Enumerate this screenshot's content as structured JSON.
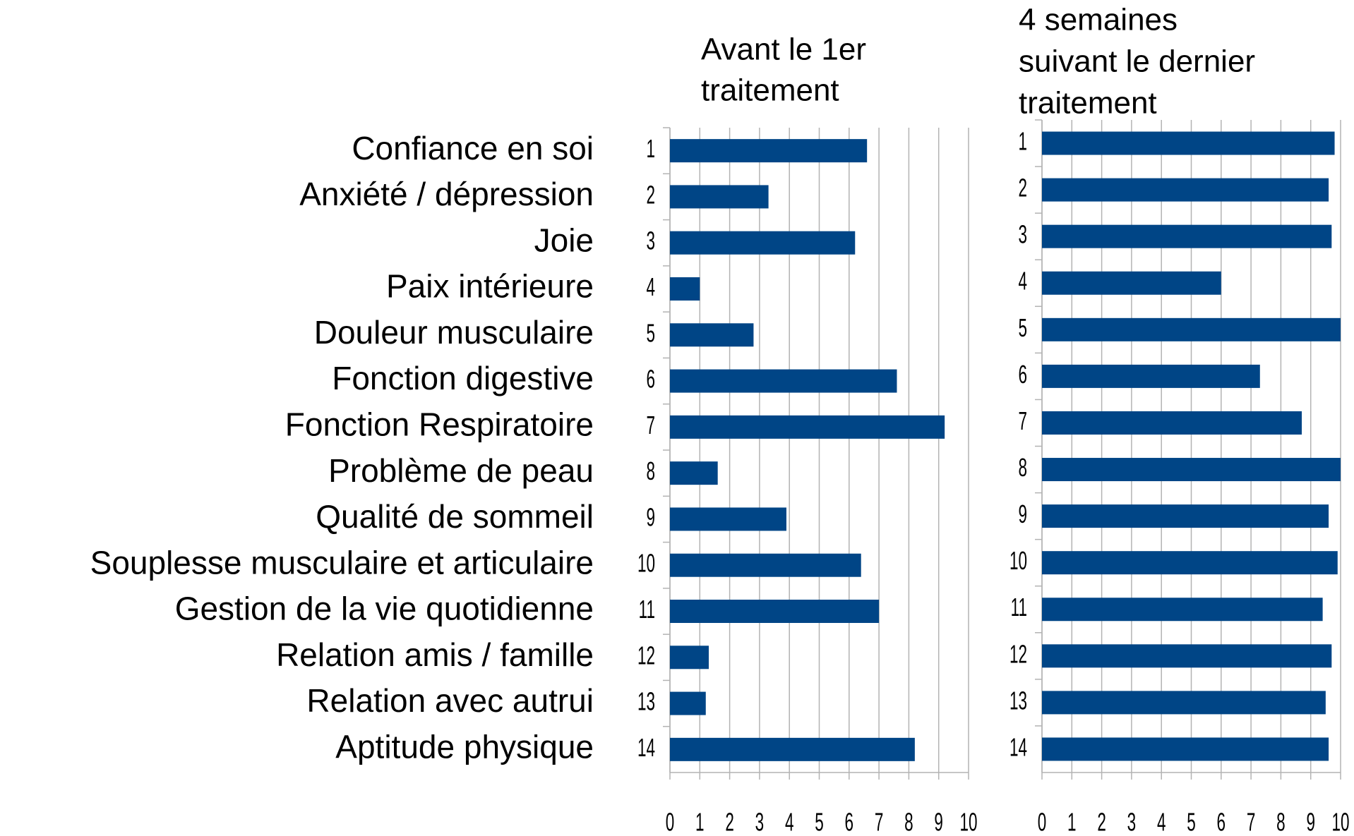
{
  "row_labels": [
    "Confiance en soi",
    "Anxiété / dépression",
    "Joie",
    "Paix intérieure",
    "Douleur musculaire",
    "Fonction digestive",
    "Fonction Respiratoire",
    "Problème de peau",
    "Qualité de sommeil",
    "Souplesse musculaire et articulaire",
    "Gestion de la vie quotidienne",
    "Relation amis / famille",
    "Relation avec autrui",
    "Aptitude physique"
  ],
  "chart_data": [
    {
      "type": "bar",
      "orientation": "horizontal",
      "title": [
        "Avant le 1er",
        "traitement"
      ],
      "categories": [
        "1",
        "2",
        "3",
        "4",
        "5",
        "6",
        "7",
        "8",
        "9",
        "10",
        "11",
        "12",
        "13",
        "14"
      ],
      "values": [
        6.6,
        3.3,
        6.2,
        1.0,
        2.8,
        7.6,
        9.2,
        1.6,
        3.9,
        6.4,
        7.0,
        1.3,
        1.2,
        8.2
      ],
      "color": "#004586",
      "xlim": [
        0,
        10
      ],
      "xticks": [
        0,
        1,
        2,
        3,
        4,
        5,
        6,
        7,
        8,
        9,
        10
      ],
      "grid": true
    },
    {
      "type": "bar",
      "orientation": "horizontal",
      "title": [
        "4 semaines",
        "suivant le dernier",
        "traitement"
      ],
      "categories": [
        "1",
        "2",
        "3",
        "4",
        "5",
        "6",
        "7",
        "8",
        "9",
        "10",
        "11",
        "12",
        "13",
        "14"
      ],
      "values": [
        9.8,
        9.6,
        9.7,
        6.0,
        10,
        7.3,
        8.7,
        10,
        9.6,
        9.9,
        9.4,
        9.7,
        9.5,
        9.6
      ],
      "color": "#004586",
      "xlim": [
        0,
        10
      ],
      "xticks": [
        0,
        1,
        2,
        3,
        4,
        5,
        6,
        7,
        8,
        9,
        10
      ],
      "grid": true
    }
  ]
}
